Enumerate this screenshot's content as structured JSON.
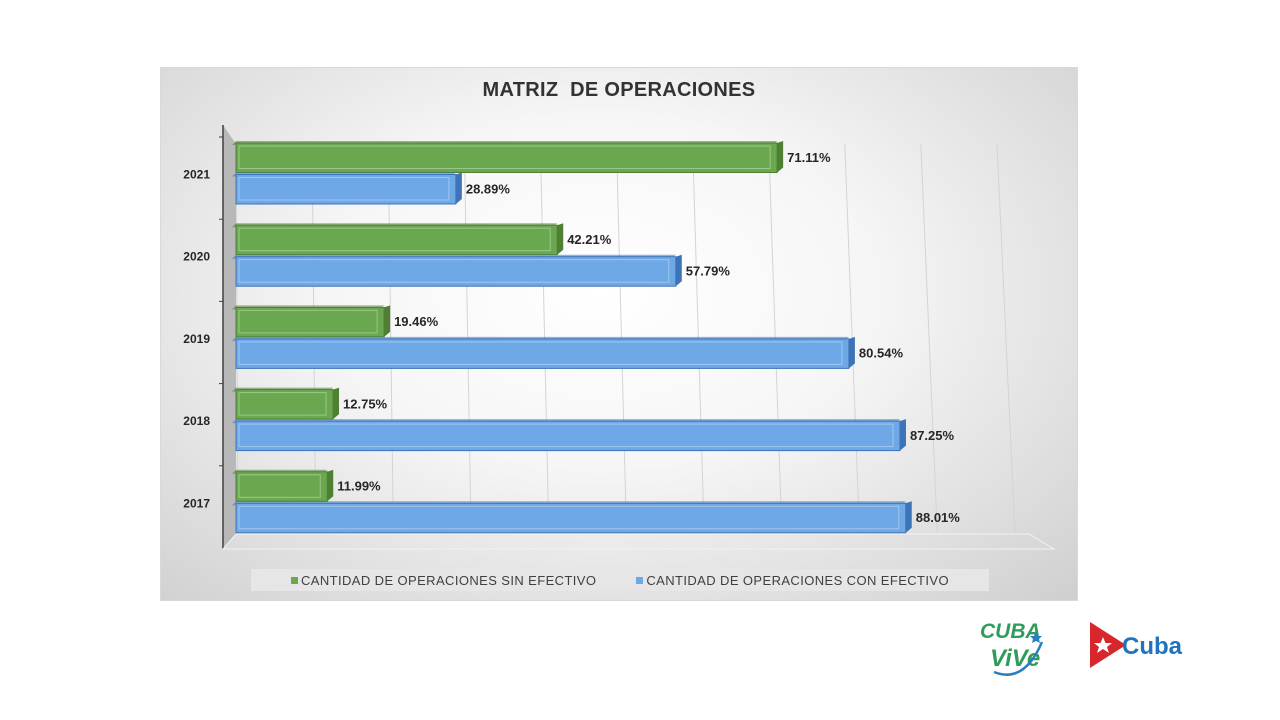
{
  "colors": {
    "sin_efectivo": "#6aa84f",
    "sin_efectivo_dark": "#4e7f33",
    "con_efectivo": "#6fa8e6",
    "con_efectivo_dark": "#3d74b8"
  },
  "chart_data": {
    "type": "bar",
    "orientation": "horizontal",
    "title": "MATRIZ  DE OPERACIONES",
    "categories": [
      "2021",
      "2020",
      "2019",
      "2018",
      "2017"
    ],
    "series": [
      {
        "name": "CANTIDAD DE OPERACIONES SIN EFECTIVO",
        "values": [
          71.11,
          42.21,
          19.46,
          12.75,
          11.99
        ],
        "labels": [
          "71.11%",
          "42.21%",
          "19.46%",
          "12.75%",
          "11.99%"
        ]
      },
      {
        "name": "CANTIDAD DE OPERACIONES CON EFECTIVO",
        "values": [
          28.89,
          57.79,
          80.54,
          87.25,
          88.01
        ],
        "labels": [
          "28.89%",
          "57.79%",
          "80.54%",
          "87.25%",
          "88.01%"
        ]
      }
    ],
    "xlim": [
      0,
      100
    ],
    "grid": true,
    "legend": "bottom"
  },
  "logos": {
    "cubavive_line1": "CUBA",
    "cubavive_line2": "ViVe",
    "cuba": "Cuba"
  }
}
